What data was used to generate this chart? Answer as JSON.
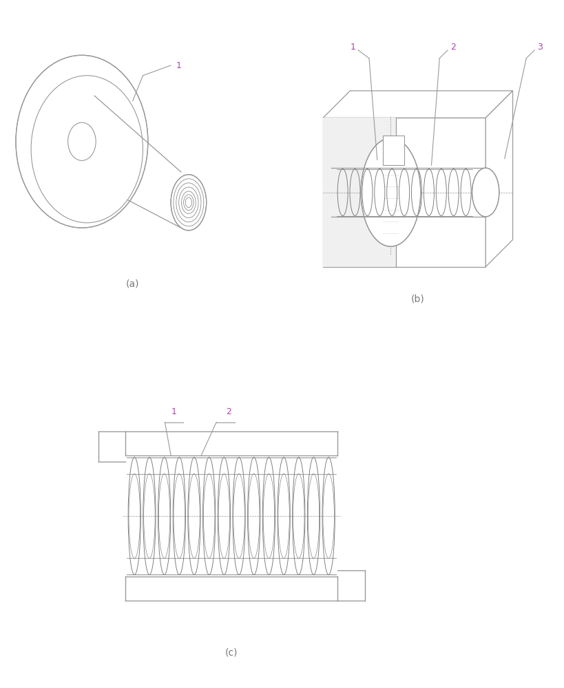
{
  "background_color": "#ffffff",
  "line_color": "#999999",
  "dark_line_color": "#777777",
  "label_color": "#aa44aa",
  "fig_label_color": "#777777",
  "title_a": "(a)",
  "title_b": "(b)",
  "title_c": "(c)",
  "label_fontsize": 9,
  "fig_label_fontsize": 10
}
